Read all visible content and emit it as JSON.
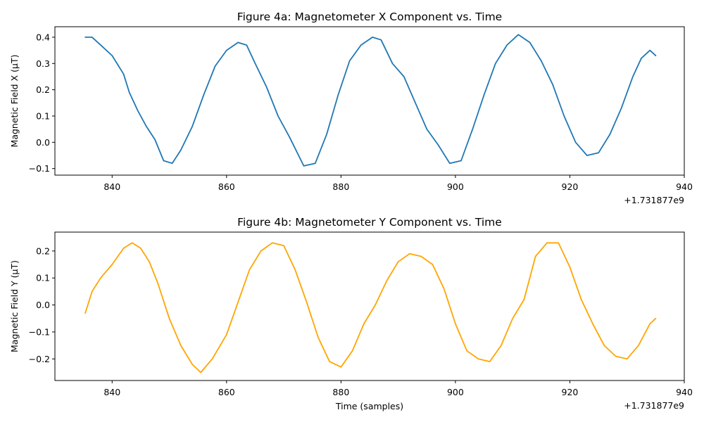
{
  "chart_data": [
    {
      "type": "line",
      "title": "Figure 4a: Magnetometer X Component vs. Time",
      "xlabel": "",
      "ylabel": "Magnetic Field X (μT)",
      "x_offset_label": "+1.731877e9",
      "xlim": [
        830,
        940
      ],
      "ylim": [
        -0.125,
        0.44
      ],
      "xticks": [
        840,
        860,
        880,
        900,
        920,
        940
      ],
      "xtick_labels": [
        "840",
        "860",
        "880",
        "900",
        "920",
        "940"
      ],
      "yticks": [
        -0.1,
        0.0,
        0.1,
        0.2,
        0.3,
        0.4
      ],
      "ytick_labels": [
        "−0.1",
        "0.0",
        "0.1",
        "0.2",
        "0.3",
        "0.4"
      ],
      "color": "#1f77b4",
      "series": [
        {
          "x": [
            835.3,
            836.5,
            838.0,
            840.0,
            842.0,
            843.0,
            844.5,
            846.0,
            847.5,
            849.0,
            850.5,
            852.0,
            854.0,
            856.0,
            858.0,
            860.0,
            862.0,
            863.5,
            865.0,
            867.0,
            869.0,
            871.0,
            873.5,
            875.5,
            877.5,
            879.5,
            881.5,
            883.5,
            885.5,
            887.0,
            889.0,
            891.0,
            893.0,
            895.0,
            897.0,
            899.0,
            901.0,
            903.0,
            905.0,
            907.0,
            909.0,
            911.0,
            913.0,
            915.0,
            917.0,
            919.0,
            921.0,
            923.0,
            925.0,
            927.0,
            929.0,
            931.0,
            932.5,
            934.0,
            935.0
          ],
          "y": [
            0.4,
            0.4,
            0.37,
            0.33,
            0.26,
            0.19,
            0.12,
            0.06,
            0.01,
            -0.07,
            -0.08,
            -0.03,
            0.06,
            0.18,
            0.29,
            0.35,
            0.38,
            0.37,
            0.3,
            0.21,
            0.1,
            0.02,
            -0.09,
            -0.08,
            0.03,
            0.18,
            0.31,
            0.37,
            0.4,
            0.39,
            0.3,
            0.25,
            0.15,
            0.05,
            -0.01,
            -0.08,
            -0.07,
            0.05,
            0.18,
            0.3,
            0.37,
            0.41,
            0.38,
            0.31,
            0.22,
            0.1,
            0.0,
            -0.05,
            -0.04,
            0.03,
            0.13,
            0.25,
            0.32,
            0.35,
            0.33
          ]
        }
      ]
    },
    {
      "type": "line",
      "title": "Figure 4b: Magnetometer Y Component vs. Time",
      "xlabel": "Time (samples)",
      "ylabel": "Magnetic Field Y (μT)",
      "x_offset_label": "+1.731877e9",
      "xlim": [
        830,
        940
      ],
      "ylim": [
        -0.28,
        0.27
      ],
      "xticks": [
        840,
        860,
        880,
        900,
        920,
        940
      ],
      "xtick_labels": [
        "840",
        "860",
        "880",
        "900",
        "920",
        "940"
      ],
      "yticks": [
        -0.2,
        -0.1,
        0.0,
        0.1,
        0.2
      ],
      "ytick_labels": [
        "−0.2",
        "−0.1",
        "0.0",
        "0.1",
        "0.2"
      ],
      "color": "#ffa500",
      "series": [
        {
          "x": [
            835.3,
            836.5,
            838.0,
            840.0,
            842.0,
            843.5,
            845.0,
            846.5,
            848.0,
            850.0,
            852.0,
            854.0,
            855.5,
            857.5,
            860.0,
            862.0,
            864.0,
            866.0,
            868.0,
            870.0,
            872.0,
            874.0,
            876.0,
            878.0,
            880.0,
            882.0,
            884.0,
            886.0,
            888.0,
            890.0,
            892.0,
            894.0,
            896.0,
            898.0,
            900.0,
            902.0,
            904.0,
            906.0,
            908.0,
            910.0,
            912.0,
            914.0,
            916.0,
            918.0,
            920.0,
            922.0,
            924.0,
            926.0,
            928.0,
            930.0,
            932.0,
            934.0,
            935.0
          ],
          "y": [
            -0.03,
            0.05,
            0.1,
            0.15,
            0.21,
            0.23,
            0.21,
            0.16,
            0.08,
            -0.05,
            -0.15,
            -0.22,
            -0.25,
            -0.2,
            -0.11,
            0.01,
            0.13,
            0.2,
            0.23,
            0.22,
            0.13,
            0.01,
            -0.12,
            -0.21,
            -0.23,
            -0.17,
            -0.07,
            0.0,
            0.09,
            0.16,
            0.19,
            0.18,
            0.15,
            0.06,
            -0.07,
            -0.17,
            -0.2,
            -0.21,
            -0.15,
            -0.05,
            0.02,
            0.18,
            0.23,
            0.23,
            0.14,
            0.02,
            -0.07,
            -0.15,
            -0.19,
            -0.2,
            -0.15,
            -0.07,
            -0.05
          ]
        }
      ]
    }
  ]
}
